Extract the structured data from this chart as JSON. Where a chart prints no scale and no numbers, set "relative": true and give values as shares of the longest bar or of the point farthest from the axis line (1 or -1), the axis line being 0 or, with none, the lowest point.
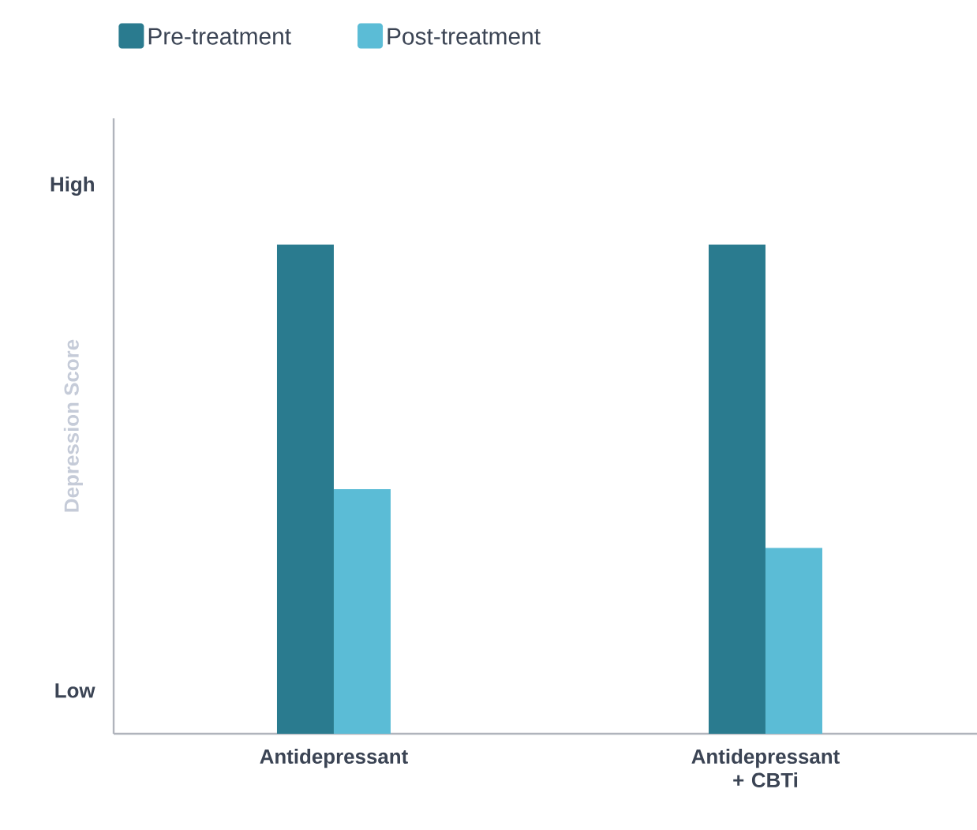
{
  "chart_data": {
    "type": "bar",
    "ylabel": "Depression Score",
    "categories": [
      "Antidepressant",
      "Antidepressant + CBTi"
    ],
    "series": [
      {
        "name": "Pre-treatment",
        "color": "#2a7b8f",
        "values": [
          1,
          1
        ]
      },
      {
        "name": "Post-treatment",
        "color": "#5bbcd6",
        "values": [
          0.5,
          0.38
        ]
      }
    ],
    "relative": true,
    "annotations": [
      "High",
      "Low"
    ],
    "legend": "top left"
  }
}
